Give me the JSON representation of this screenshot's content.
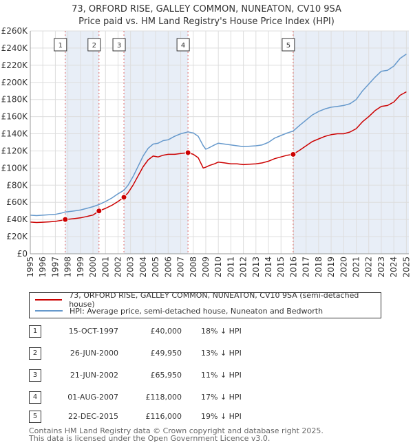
{
  "header": {
    "title": "73, ORFORD RISE, GALLEY COMMON, NUNEATON, CV10 9SA",
    "subtitle": "Price paid vs. HM Land Registry's House Price Index (HPI)"
  },
  "legend": {
    "property_label": "73, ORFORD RISE, GALLEY COMMON, NUNEATON, CV10 9SA (semi-detached house)",
    "hpi_label": "HPI: Average price, semi-detached house, Nuneaton and Bedworth"
  },
  "colors": {
    "property": "#cc0000",
    "hpi": "#6699cc",
    "shade": "#e8eef7",
    "grid": "#dddddd",
    "vline": "#e06666"
  },
  "sales": [
    {
      "num": "1",
      "date": "15-OCT-1997",
      "price": "£40,000",
      "hpi": "18% ↓ HPI"
    },
    {
      "num": "2",
      "date": "26-JUN-2000",
      "price": "£49,950",
      "hpi": "13% ↓ HPI"
    },
    {
      "num": "3",
      "date": "21-JUN-2002",
      "price": "£65,950",
      "hpi": "11% ↓ HPI"
    },
    {
      "num": "4",
      "date": "01-AUG-2007",
      "price": "£118,000",
      "hpi": "17% ↓ HPI"
    },
    {
      "num": "5",
      "date": "22-DEC-2015",
      "price": "£116,000",
      "hpi": "19% ↓ HPI"
    }
  ],
  "footer": {
    "line1": "Contains HM Land Registry data © Crown copyright and database right 2025.",
    "line2": "This data is licensed under the Open Government Licence v3.0."
  },
  "chart_data": {
    "type": "line",
    "title": "73, ORFORD RISE, GALLEY COMMON, NUNEATON, CV10 9SA",
    "xlim": [
      1995,
      2025.2
    ],
    "ylim": [
      0,
      260000
    ],
    "y_ticks": [
      0,
      20000,
      40000,
      60000,
      80000,
      100000,
      120000,
      140000,
      160000,
      180000,
      200000,
      220000,
      240000,
      260000
    ],
    "y_tick_labels": [
      "£0",
      "£20K",
      "£40K",
      "£60K",
      "£80K",
      "£100K",
      "£120K",
      "£140K",
      "£160K",
      "£180K",
      "£200K",
      "£220K",
      "£240K",
      "£260K"
    ],
    "x_ticks": [
      1995,
      1996,
      1997,
      1998,
      1999,
      2000,
      2001,
      2002,
      2003,
      2004,
      2005,
      2006,
      2007,
      2008,
      2009,
      2010,
      2011,
      2012,
      2013,
      2014,
      2015,
      2016,
      2017,
      2018,
      2019,
      2020,
      2021,
      2022,
      2023,
      2024,
      2025
    ],
    "x_tick_labels": [
      "1995",
      "1996",
      "1997",
      "1998",
      "1999",
      "2000",
      "2001",
      "2002",
      "2003",
      "2004",
      "2005",
      "2006",
      "2007",
      "2008",
      "2009",
      "2010",
      "2011",
      "2012",
      "2013",
      "2014",
      "2015",
      "2016",
      "2017",
      "2018",
      "2019",
      "2020",
      "2021",
      "2022",
      "2023",
      "2024",
      "2025"
    ],
    "shaded_ranges": [
      [
        1997.79,
        2000.48
      ],
      [
        2002.47,
        2007.58
      ],
      [
        2015.97,
        2025.2
      ]
    ],
    "sale_markers": [
      {
        "label": "1",
        "x": 1997.79,
        "y": 40000
      },
      {
        "label": "2",
        "x": 2000.48,
        "y": 49950
      },
      {
        "label": "3",
        "x": 2002.47,
        "y": 65950
      },
      {
        "label": "4",
        "x": 2007.58,
        "y": 118000
      },
      {
        "label": "5",
        "x": 2015.97,
        "y": 116000
      }
    ],
    "series": [
      {
        "name": "HPI: Average price, semi-detached house, Nuneaton and Bedworth",
        "x": [
          1995.0,
          1995.5,
          1996.0,
          1996.5,
          1997.0,
          1997.5,
          1997.79,
          1998.0,
          1998.5,
          1999.0,
          1999.5,
          2000.0,
          2000.48,
          2001.0,
          2001.5,
          2002.0,
          2002.47,
          2002.8,
          2003.2,
          2003.6,
          2004.0,
          2004.4,
          2004.8,
          2005.2,
          2005.6,
          2006.0,
          2006.5,
          2007.0,
          2007.58,
          2008.0,
          2008.4,
          2008.8,
          2009.0,
          2009.3,
          2009.7,
          2010.0,
          2010.5,
          2011.0,
          2011.5,
          2012.0,
          2012.5,
          2013.0,
          2013.5,
          2014.0,
          2014.5,
          2015.0,
          2015.5,
          2015.97,
          2016.5,
          2017.0,
          2017.5,
          2018.0,
          2018.5,
          2019.0,
          2019.5,
          2020.0,
          2020.5,
          2021.0,
          2021.5,
          2022.0,
          2022.5,
          2023.0,
          2023.5,
          2024.0,
          2024.5,
          2025.0
        ],
        "values": [
          45000,
          44500,
          45000,
          45500,
          46000,
          47500,
          48800,
          49000,
          50000,
          51000,
          53000,
          55000,
          57400,
          61000,
          65000,
          70000,
          74100,
          80000,
          90000,
          102000,
          114000,
          123000,
          128000,
          129000,
          132000,
          133000,
          137000,
          140000,
          142200,
          141000,
          137000,
          126000,
          122000,
          124000,
          127000,
          129000,
          128000,
          127000,
          126000,
          125000,
          125500,
          126000,
          127000,
          130000,
          135000,
          138000,
          141000,
          143200,
          150000,
          156000,
          162000,
          166000,
          169000,
          171000,
          172000,
          173000,
          175000,
          180000,
          190000,
          198000,
          206000,
          213000,
          214000,
          219000,
          228000,
          233000
        ]
      },
      {
        "name": "73, ORFORD RISE, GALLEY COMMON, NUNEATON, CV10 9SA (semi-detached house)",
        "x": [
          1995.0,
          1995.5,
          1996.0,
          1996.5,
          1997.0,
          1997.5,
          1997.79,
          1998.0,
          1998.5,
          1999.0,
          1999.5,
          2000.0,
          2000.48,
          2001.0,
          2001.5,
          2002.0,
          2002.47,
          2002.8,
          2003.2,
          2003.6,
          2004.0,
          2004.4,
          2004.8,
          2005.2,
          2005.6,
          2006.0,
          2006.5,
          2007.0,
          2007.58,
          2008.0,
          2008.4,
          2008.8,
          2009.0,
          2009.3,
          2009.7,
          2010.0,
          2010.5,
          2011.0,
          2011.5,
          2012.0,
          2012.5,
          2013.0,
          2013.5,
          2014.0,
          2014.5,
          2015.0,
          2015.5,
          2015.97,
          2016.5,
          2017.0,
          2017.5,
          2018.0,
          2018.5,
          2019.0,
          2019.5,
          2020.0,
          2020.5,
          2021.0,
          2021.5,
          2022.0,
          2022.5,
          2023.0,
          2023.5,
          2024.0,
          2024.5,
          2025.0
        ],
        "values": [
          37000,
          36500,
          36800,
          37200,
          37800,
          39000,
          40000,
          40200,
          41000,
          41900,
          43500,
          45200,
          49950,
          53000,
          56500,
          61000,
          65950,
          71200,
          80100,
          90800,
          101500,
          109500,
          114000,
          113000,
          115000,
          116000,
          116000,
          117000,
          118000,
          116000,
          112000,
          100000,
          101000,
          103000,
          105000,
          107000,
          106000,
          105000,
          105000,
          104000,
          104500,
          105000,
          106000,
          108000,
          111000,
          113000,
          115000,
          116000,
          121000,
          126000,
          131000,
          134000,
          137000,
          139000,
          140000,
          140000,
          142000,
          146000,
          154000,
          160000,
          167000,
          172000,
          173000,
          177000,
          185000,
          189000
        ]
      }
    ]
  }
}
